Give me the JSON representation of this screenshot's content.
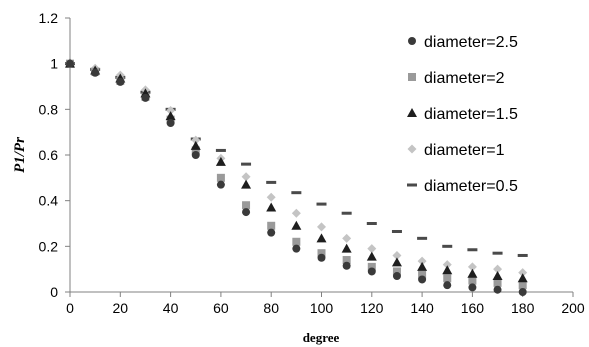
{
  "chart_data": {
    "type": "scatter",
    "xlabel": "degree",
    "ylabel": "P1/Pr",
    "xlim": [
      0,
      200
    ],
    "ylim": [
      0,
      1.2
    ],
    "xticks": [
      "0",
      "20",
      "40",
      "60",
      "80",
      "100",
      "120",
      "140",
      "160",
      "180",
      "200"
    ],
    "yticks": [
      "0",
      "0.2",
      "0.4",
      "0.6",
      "0.8",
      "1",
      "1.2"
    ],
    "grid": false,
    "legend_position": "right",
    "x": [
      0,
      10,
      20,
      30,
      40,
      50,
      60,
      70,
      80,
      90,
      100,
      110,
      120,
      130,
      140,
      150,
      160,
      170,
      180
    ],
    "series": [
      {
        "name": "diameter=2.5",
        "marker": "circle",
        "color": "#3a3a3a",
        "values": [
          1.0,
          0.96,
          0.92,
          0.85,
          0.74,
          0.6,
          0.47,
          0.35,
          0.26,
          0.19,
          0.15,
          0.115,
          0.09,
          0.07,
          0.055,
          0.03,
          0.02,
          0.01,
          0.0
        ]
      },
      {
        "name": "diameter=2",
        "marker": "square",
        "color": "#9a9a9a",
        "values": [
          1.0,
          0.965,
          0.925,
          0.855,
          0.755,
          0.62,
          0.5,
          0.38,
          0.29,
          0.22,
          0.17,
          0.14,
          0.11,
          0.09,
          0.075,
          0.06,
          0.05,
          0.04,
          0.03
        ]
      },
      {
        "name": "diameter=1.5",
        "marker": "triangle",
        "color": "#1e1e1e",
        "values": [
          1.0,
          0.97,
          0.935,
          0.87,
          0.77,
          0.64,
          0.57,
          0.47,
          0.37,
          0.29,
          0.235,
          0.19,
          0.155,
          0.13,
          0.11,
          0.095,
          0.08,
          0.07,
          0.06
        ]
      },
      {
        "name": "diameter=1",
        "marker": "diamond",
        "color": "#c4c4c4",
        "values": [
          1.0,
          0.98,
          0.95,
          0.885,
          0.795,
          0.665,
          0.585,
          0.505,
          0.415,
          0.345,
          0.285,
          0.235,
          0.19,
          0.16,
          0.135,
          0.12,
          0.11,
          0.1,
          0.085
        ]
      },
      {
        "name": "diameter=0.5",
        "marker": "dash",
        "color": "#4a4a4a",
        "values": [
          1.0,
          0.975,
          0.94,
          0.875,
          0.8,
          0.67,
          0.62,
          0.56,
          0.48,
          0.435,
          0.385,
          0.345,
          0.3,
          0.265,
          0.235,
          0.2,
          0.185,
          0.17,
          0.16
        ]
      }
    ]
  }
}
